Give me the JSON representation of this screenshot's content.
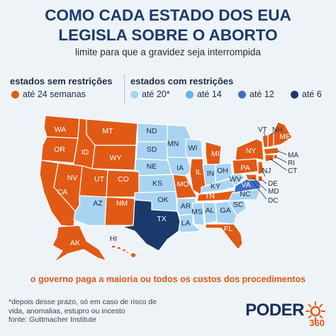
{
  "title_line1": "COMO CADA ESTADO DOS EUA",
  "title_line2": "LEGISLA SOBRE O ABORTO",
  "subtitle": "limite para que a gravidez seja interrompida",
  "legend": {
    "group1_title": "estados sem restrições",
    "group2_title": "estados com restrições",
    "items": [
      {
        "label": "até 24 semanas",
        "color": "#e05a16"
      },
      {
        "label": "até 20*",
        "color": "#a8d4f2"
      },
      {
        "label": "até 14",
        "color": "#6ab2ea"
      },
      {
        "label": "até 12",
        "color": "#3f6fc4"
      },
      {
        "label": "até 6",
        "color": "#1b3a6b"
      }
    ]
  },
  "states": {
    "WA": "WA",
    "OR": "OR",
    "ID": "ID",
    "MT": "MT",
    "WY": "WY",
    "NV": "NV",
    "CA": "CA",
    "UT": "UT",
    "CO": "CO",
    "AZ": "AZ",
    "NM": "NM",
    "ND": "ND",
    "SD": "SD",
    "NE": "NE",
    "KS": "KS",
    "OK": "OK",
    "TX": "TX",
    "MN": "MN",
    "IA": "IA",
    "MO": "MO",
    "AR": "AR",
    "LA": "LA",
    "WI": "WI",
    "IL": "IL",
    "MS": "MS",
    "MI": "MI",
    "IN": "IN",
    "KY": "KY",
    "TN": "TN",
    "AL": "AL",
    "OH": "OH",
    "GA": "GA",
    "FL": "FL",
    "SC": "SC",
    "NC": "NC",
    "VA": "VA",
    "WV": "WV",
    "PA": "PA",
    "NY": "NY",
    "VT": "VT",
    "NH": "NH",
    "ME": "ME",
    "MA": "MA",
    "RI": "RI",
    "CT": "CT",
    "NJ": "NJ",
    "DE": "DE",
    "MD": "MD",
    "DC": "DC",
    "AK": "AK",
    "HI": "HI"
  },
  "footer_line": "o governo paga a maioria ou todos os custos dos procedimentos",
  "note_line1": "*depois desse prazo, só em caso de risco de",
  "note_line2": "vida, anomalias, estupro ou incesto",
  "note_line3": "fonte: Guttmacher Institute",
  "logo_word": "PODER",
  "logo_num": "360"
}
